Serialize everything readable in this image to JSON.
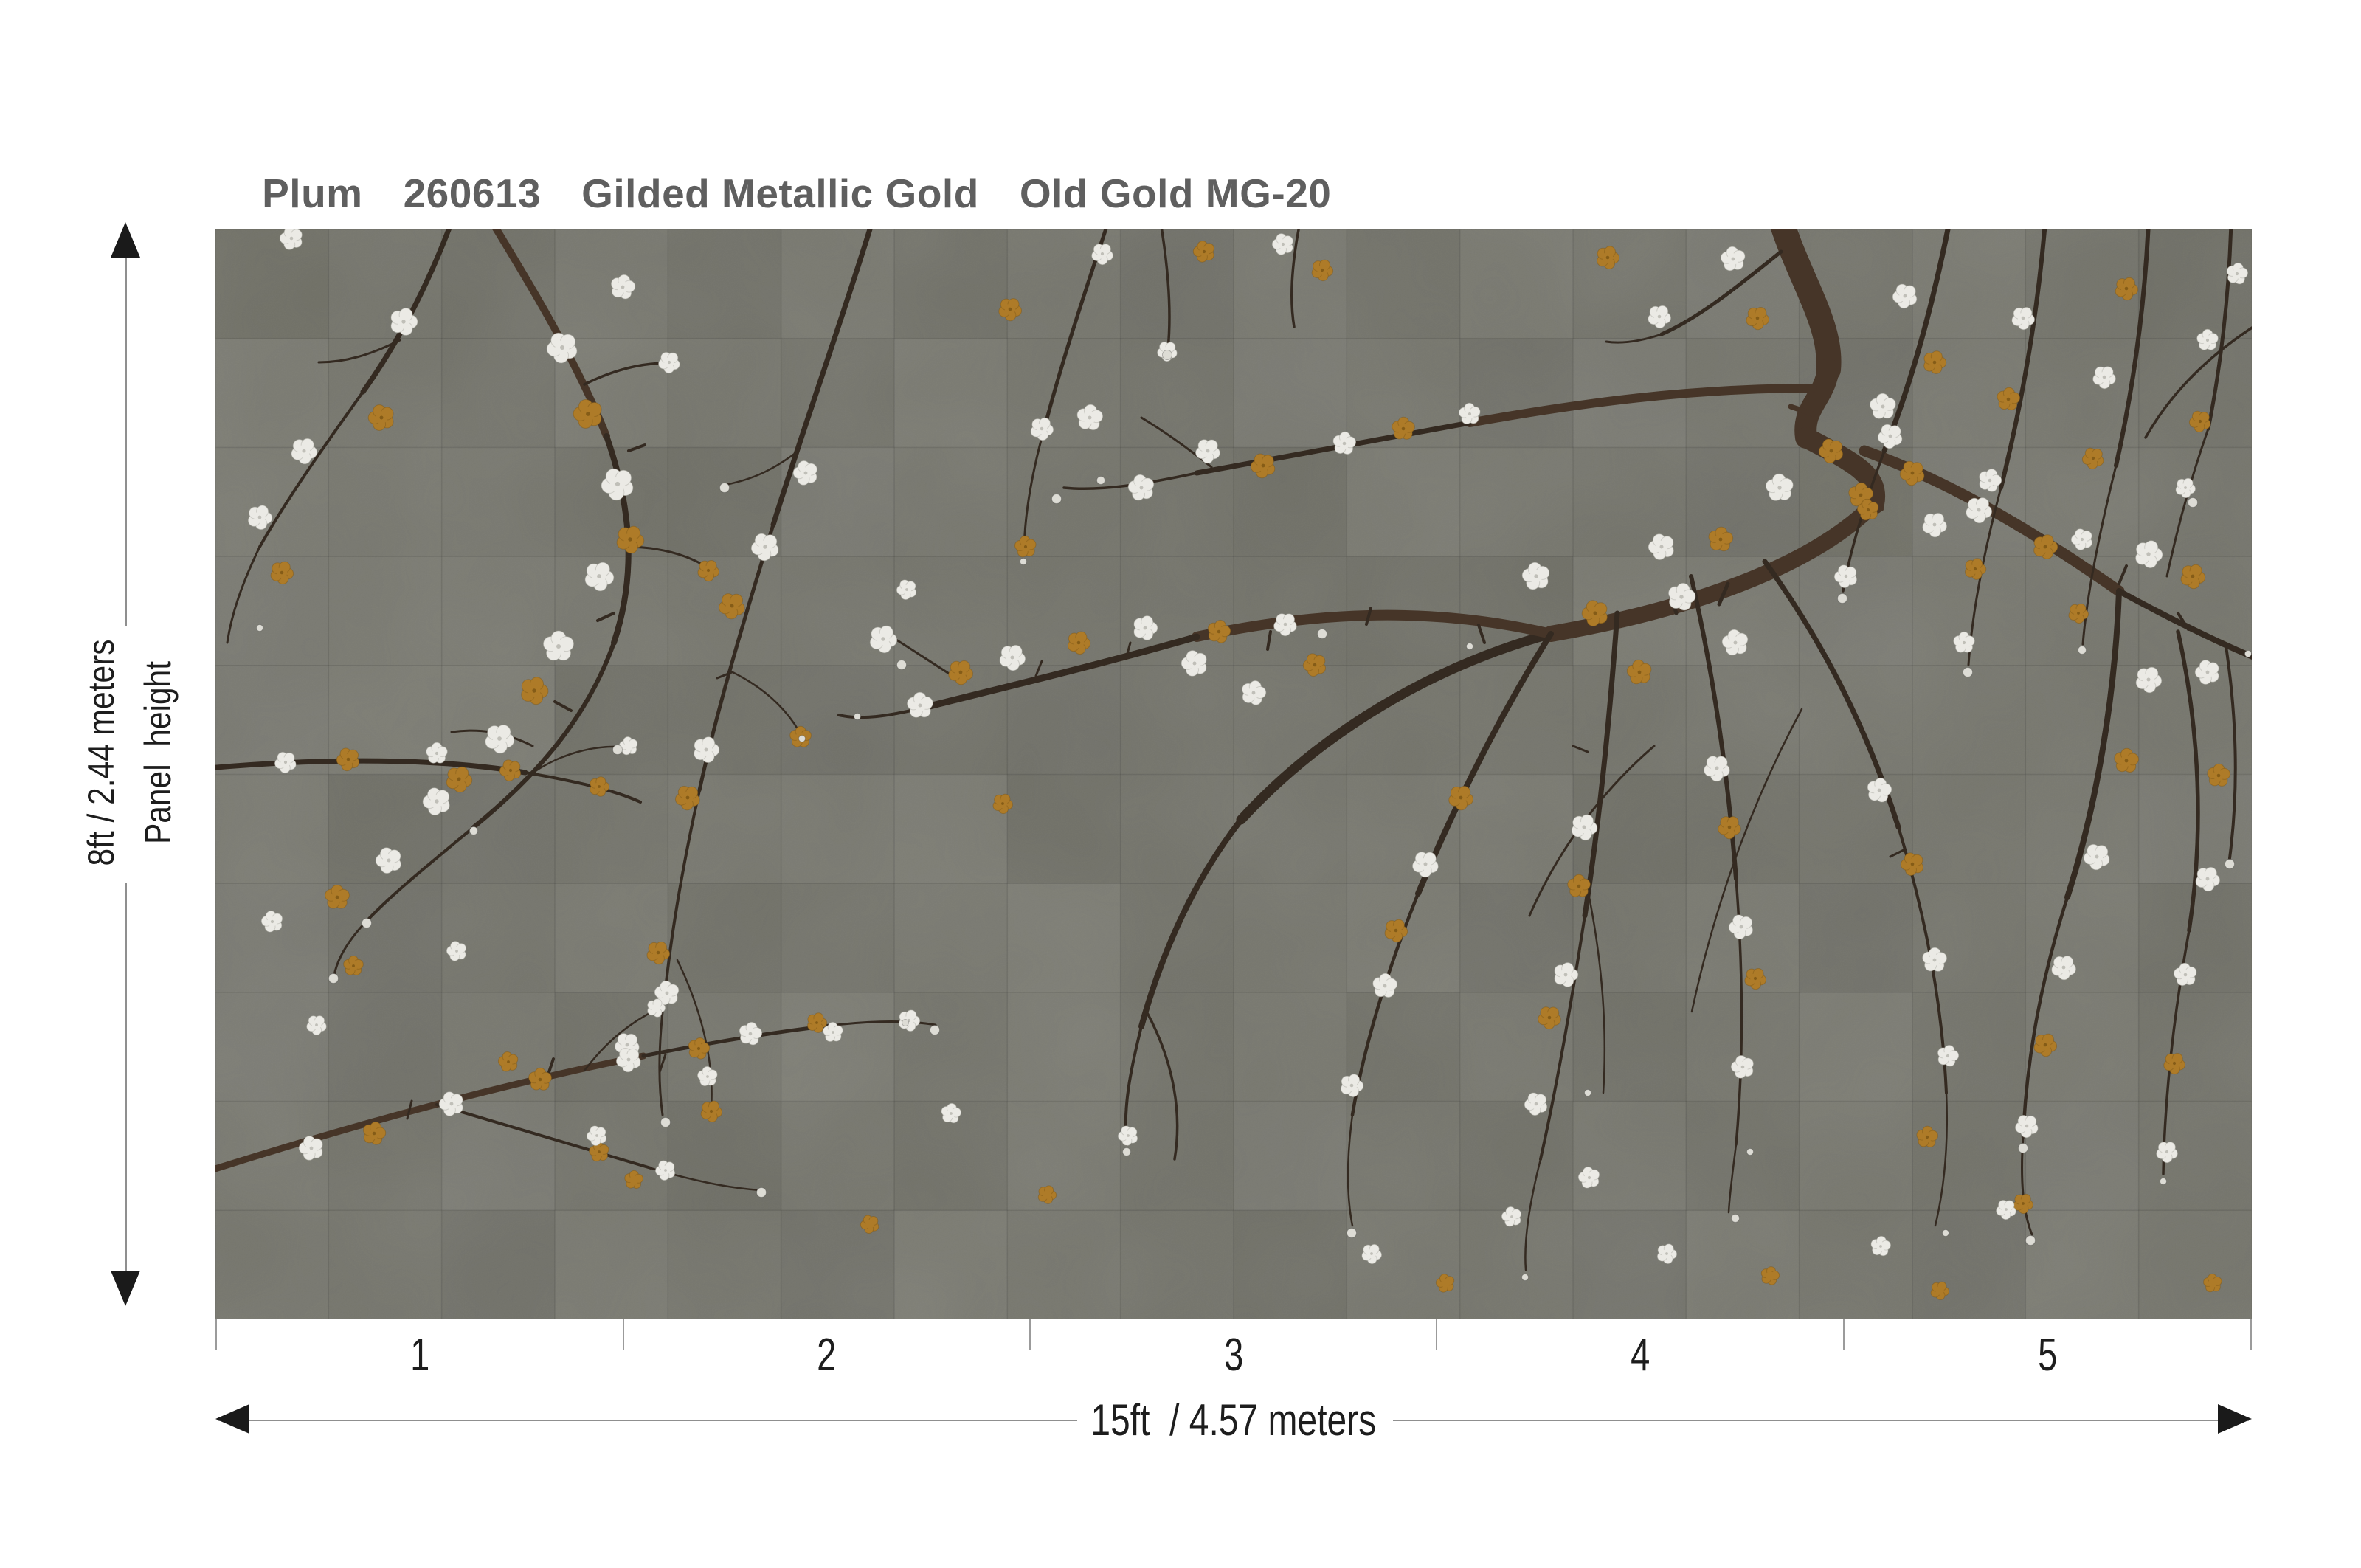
{
  "title": {
    "pattern_name": "Plum",
    "pattern_number": "260613",
    "finish": "Gilded Metallic Gold",
    "colorway": "Old Gold MG-20"
  },
  "dimensions": {
    "panel_height_label": "Panel  height",
    "panel_height_value": "8ft / 2.44 meters",
    "total_width_value": "15ft  / 4.57 meters"
  },
  "panels": {
    "numbers": [
      "1",
      "2",
      "3",
      "4",
      "5"
    ]
  },
  "colors": {
    "page_background": "#ffffff",
    "title_text": "#5f5f5f",
    "annotation_text": "#1d1d1d",
    "arrow_line": "#8f8f8f",
    "arrow_head": "#1a1a1a",
    "mural_background": "#74746b",
    "branch_dark": "#342a21",
    "branch_trunk": "#463528",
    "blossom_white": "#ebeae5",
    "blossom_white_edge": "#a8a8a0",
    "blossom_gold": "#ae7b28",
    "blossom_gold_edge": "#7d5716",
    "bud": "#dddcd5"
  }
}
